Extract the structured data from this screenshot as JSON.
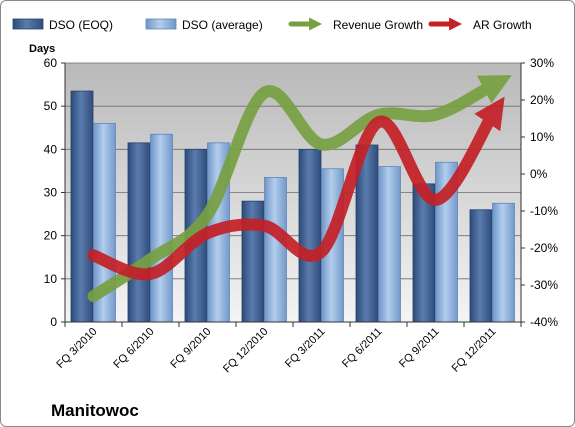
{
  "chart_data": {
    "type": "bar",
    "title": "Manitowoc",
    "ylabel": "Days",
    "ylim": [
      0,
      60
    ],
    "y_ticks": [
      0,
      10,
      20,
      30,
      40,
      50,
      60
    ],
    "y2lim": [
      -40,
      30
    ],
    "y2_ticks": [
      "-40%",
      "-30%",
      "-20%",
      "-10%",
      "0%",
      "10%",
      "20%",
      "30%"
    ],
    "y2_tick_values": [
      -40,
      -30,
      -20,
      -10,
      0,
      10,
      20,
      30
    ],
    "categories": [
      "FQ 3/2010",
      "FQ 6/2010",
      "FQ 9/2010",
      "FQ 12/2010",
      "FQ 3/2011",
      "FQ 6/2011",
      "FQ 9/2011",
      "FQ 12/2011"
    ],
    "grid": true,
    "legend": "top",
    "series": [
      {
        "name": "DSO (EOQ)",
        "kind": "bar",
        "axis": "left",
        "color": "#3e5f8f",
        "values": [
          53.5,
          41.5,
          40,
          28,
          40,
          41,
          32,
          26
        ]
      },
      {
        "name": "DSO (average)",
        "kind": "bar",
        "axis": "left",
        "color": "#8db1de",
        "values": [
          46,
          43.5,
          41.5,
          33.5,
          35.5,
          36,
          37,
          27.5
        ]
      },
      {
        "name": "Revenue Growth",
        "kind": "arrow-line",
        "axis": "right",
        "color": "#77a042",
        "values": [
          -33,
          -23,
          -11,
          22,
          8,
          16,
          16,
          24
        ]
      },
      {
        "name": "AR Growth",
        "kind": "arrow-line",
        "axis": "right",
        "color": "#c42026",
        "values": [
          -22,
          -27,
          -16,
          -14,
          -21,
          14,
          -7,
          16
        ]
      }
    ]
  }
}
